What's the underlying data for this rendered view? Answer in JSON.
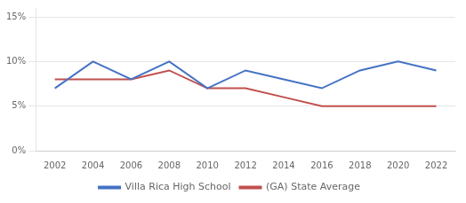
{
  "chart_data": {
    "type": "line",
    "x": [
      2002,
      2004,
      2006,
      2008,
      2010,
      2012,
      2014,
      2016,
      2018,
      2020,
      2022
    ],
    "series": [
      {
        "name": "Villa Rica High School",
        "color": "#4472c4",
        "values": [
          0.07,
          0.1,
          0.08,
          0.1,
          0.07,
          0.09,
          0.08,
          0.07,
          0.09,
          0.1,
          0.09
        ]
      },
      {
        "name": "(GA) State Average",
        "color": "#c0504d",
        "values": [
          0.08,
          0.08,
          0.08,
          0.09,
          0.07,
          0.07,
          0.06,
          0.05,
          0.05,
          0.05,
          0.05
        ]
      }
    ],
    "xlim": [
      2001,
      2023
    ],
    "xticks": [
      2002,
      2004,
      2006,
      2008,
      2010,
      2012,
      2014,
      2016,
      2018,
      2020,
      2022
    ],
    "ylim": [
      0,
      0.16
    ],
    "yticks": [
      {
        "value": 0.0,
        "label": "0%"
      },
      {
        "value": 0.05,
        "label": "5%"
      },
      {
        "value": 0.1,
        "label": "10%"
      },
      {
        "value": 0.15,
        "label": "15%"
      }
    ],
    "grid": "y",
    "legend": "bottom"
  }
}
